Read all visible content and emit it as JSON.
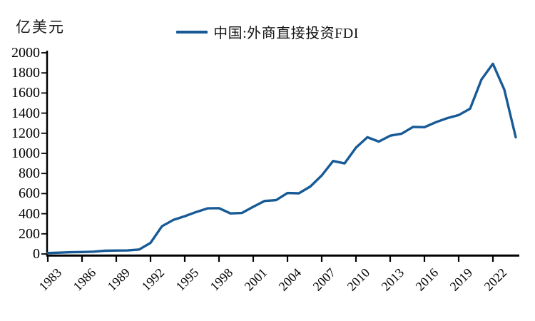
{
  "chart_data": {
    "type": "line",
    "title": "",
    "unit_label": "亿美元",
    "legend": [
      {
        "name": "中国:外商直接投资FDI",
        "color": "#175a96"
      }
    ],
    "x": [
      1983,
      1984,
      1985,
      1986,
      1987,
      1988,
      1989,
      1990,
      1991,
      1992,
      1993,
      1994,
      1995,
      1996,
      1997,
      1998,
      1999,
      2000,
      2001,
      2002,
      2003,
      2004,
      2005,
      2006,
      2007,
      2008,
      2009,
      2010,
      2011,
      2012,
      2013,
      2014,
      2015,
      2016,
      2017,
      2018,
      2019,
      2020,
      2021,
      2022,
      2023,
      2024
    ],
    "series": [
      {
        "name": "中国:外商直接投资FDI",
        "values": [
          9,
          13,
          17,
          19,
          23,
          32,
          34,
          35,
          44,
          110,
          275,
          338,
          375,
          417,
          453,
          455,
          403,
          407,
          469,
          527,
          535,
          606,
          603,
          670,
          780,
          924,
          900,
          1057,
          1160,
          1117,
          1176,
          1196,
          1263,
          1260,
          1310,
          1350,
          1381,
          1444,
          1735,
          1891,
          1633,
          1160
        ]
      }
    ],
    "xlabel": "",
    "ylabel": "",
    "ylim": [
      0,
      2000
    ],
    "y_ticks": [
      0,
      200,
      400,
      600,
      800,
      1000,
      1200,
      1400,
      1600,
      1800,
      2000
    ],
    "x_tick_labels": [
      "1983",
      "1986",
      "1989",
      "1992",
      "1995",
      "1998",
      "2001",
      "2004",
      "2007",
      "2010",
      "2013",
      "2016",
      "2019",
      "2022"
    ],
    "grid": "off",
    "legend_position": "top-center",
    "line_color": "#175a96",
    "axis_color": "#000000",
    "background_color": "#ffffff"
  }
}
